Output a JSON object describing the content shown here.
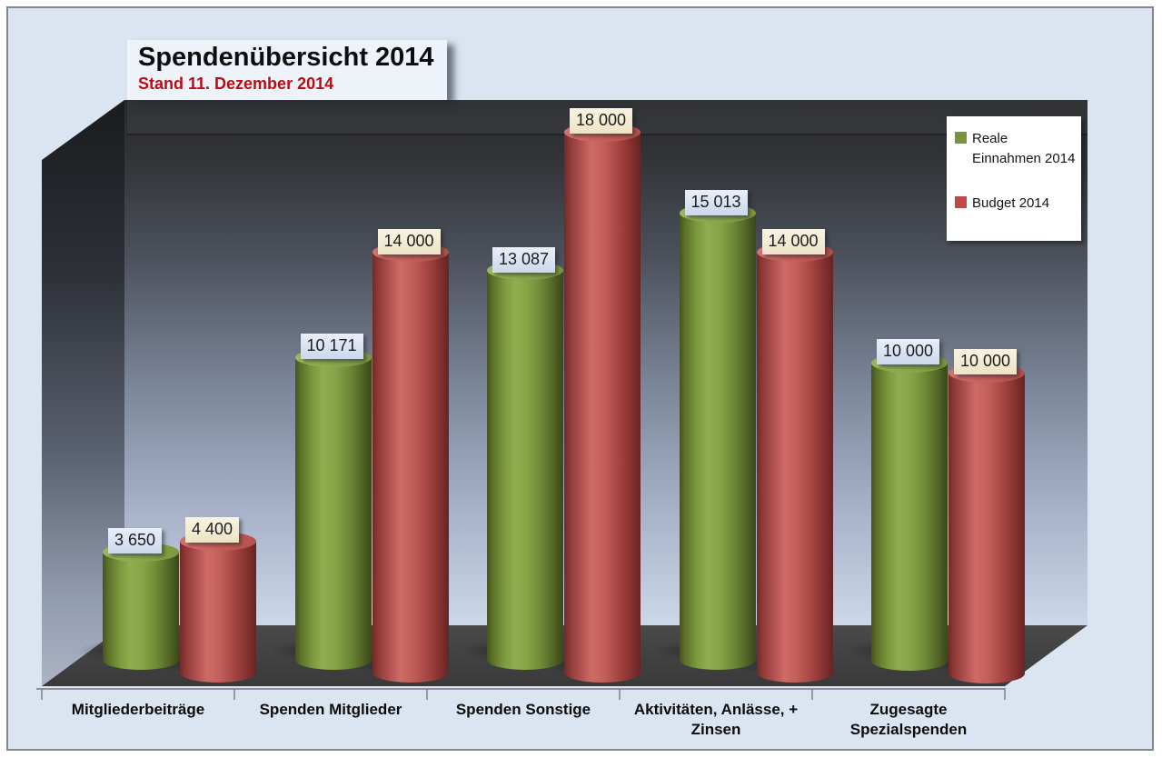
{
  "chart": {
    "title": "Spendenübersicht 2014",
    "subtitle": "Stand 11. Dezember 2014",
    "colors": {
      "chart_background": "#dbe5f1",
      "subtitle_red": "#be0a11",
      "series_green": "#77933c",
      "series_red": "#bf4b47",
      "green_value_label_bg": "#ccd9ec",
      "red_value_label_bg": "#f3eed9",
      "floor": "#3e3e3e"
    }
  },
  "chart_data": {
    "type": "bar",
    "subtype": "3d-cylinder-clustered",
    "title": "Spendenübersicht 2014",
    "subtitle": "Stand 11. Dezember 2014",
    "categories": [
      "Mitgliederbeiträge",
      "Spenden Mitglieder",
      "Spenden Sonstige",
      "Aktivitäten, Anlässe, + Zinsen",
      "Zugesagte Spezialspenden"
    ],
    "series": [
      {
        "name": "Reale Einnahmen 2014",
        "color": "#77933c",
        "values": [
          3650,
          10171,
          13087,
          15013,
          10000
        ],
        "labels": [
          "3 650",
          "10 171",
          "13 087",
          "15 013",
          "10 000"
        ]
      },
      {
        "name": "Budget 2014",
        "color": "#bf4b47",
        "values": [
          4400,
          14000,
          18000,
          14000,
          10000
        ],
        "labels": [
          "4 400",
          "14 000",
          "18 000",
          "14 000",
          "10 000"
        ]
      }
    ],
    "value_axis": {
      "min": 0,
      "max_shown": 18000,
      "axis_labels_visible": false
    },
    "legend_position": "top-right",
    "data_labels": "above bars, formatted with space as thousands separator",
    "walls": "dark gradient 3-D walls, dark gray floor",
    "gridlines": false
  }
}
